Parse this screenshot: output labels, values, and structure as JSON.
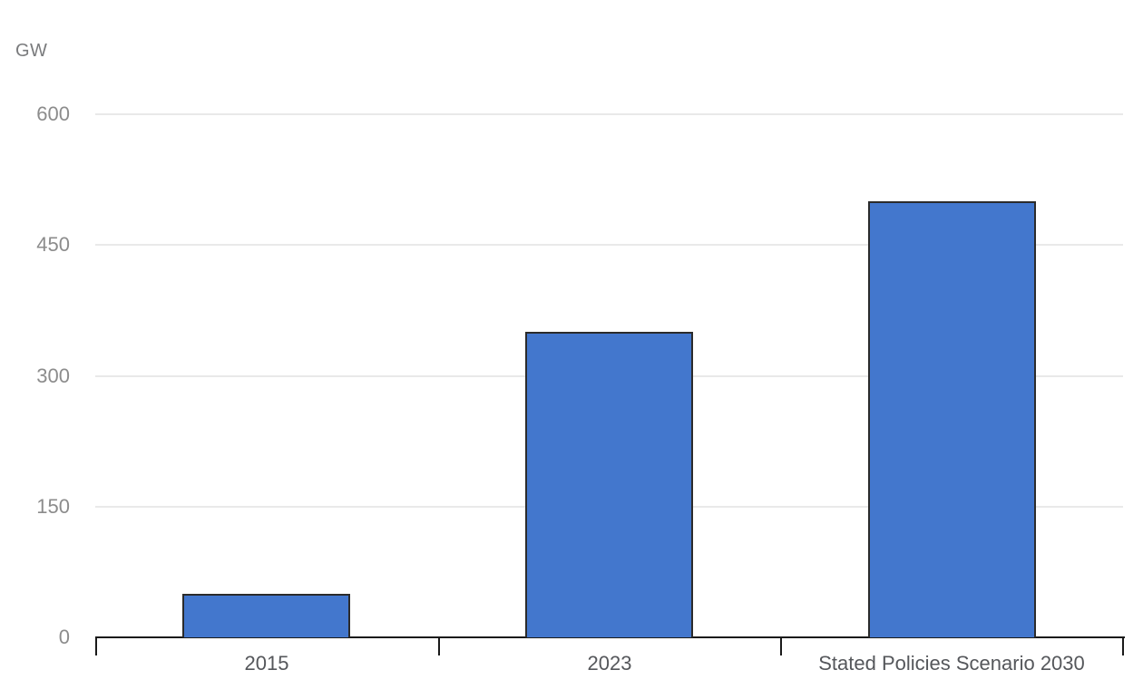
{
  "chart_data": {
    "type": "bar",
    "title": "",
    "unit_label": "GW",
    "categories": [
      "2015",
      "2023",
      "Stated Policies Scenario 2030"
    ],
    "values": [
      50,
      350,
      500
    ],
    "xlabel": "",
    "ylabel": "GW",
    "ylim": [
      0,
      600
    ],
    "yticks": [
      0,
      150,
      300,
      450,
      600
    ],
    "grid": true,
    "legend": "none",
    "colors": {
      "background": "#ffffff",
      "bar_fill": "#4377cd",
      "bar_border": "#2b2b2b",
      "gridline": "#e9e9e9",
      "axis": "#1a1a1a",
      "y_label": "#8c8c8c",
      "x_label": "#55575b",
      "unit_label": "#7a7b7d"
    }
  }
}
